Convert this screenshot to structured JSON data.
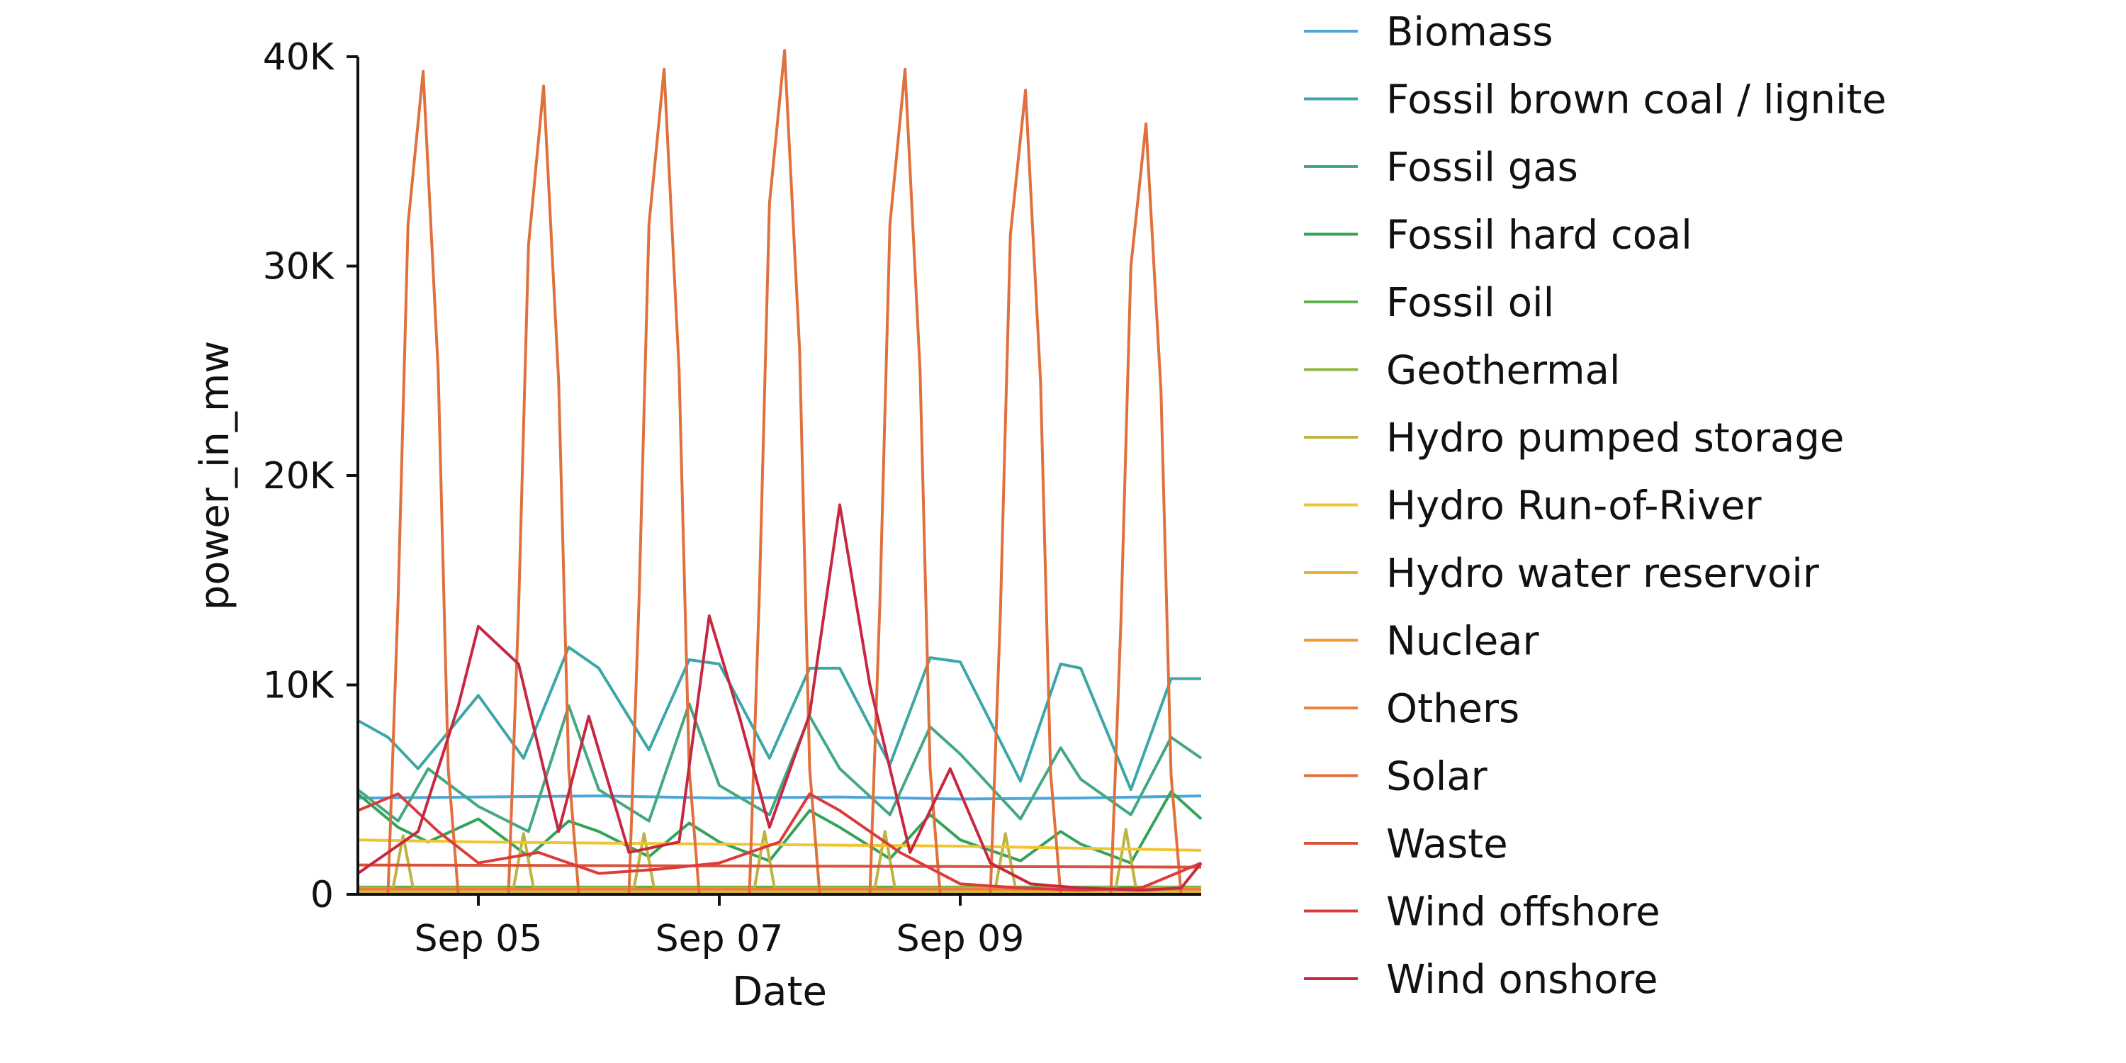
{
  "chart_data": {
    "type": "line",
    "xlabel": "Date",
    "ylabel": "power_in_mw",
    "x_start": "2023-09-04T00:00",
    "x_end": "2023-09-11T00:00",
    "xticks": [
      {
        "value": "2023-09-05",
        "label": "Sep 05"
      },
      {
        "value": "2023-09-07",
        "label": "Sep 07"
      },
      {
        "value": "2023-09-09",
        "label": "Sep 09"
      }
    ],
    "ylim": [
      0,
      40000
    ],
    "yticks": [
      {
        "value": 0,
        "label": "0"
      },
      {
        "value": 10000,
        "label": "10K"
      },
      {
        "value": 20000,
        "label": "20K"
      },
      {
        "value": 30000,
        "label": "30K"
      },
      {
        "value": 40000,
        "label": "40K"
      }
    ],
    "grid": false,
    "legend_position": "right",
    "series": [
      {
        "name": "Biomass",
        "color": "#4ea6d8",
        "x": [
          "2023-09-04T00:00",
          "2023-09-05T00:00",
          "2023-09-06T00:00",
          "2023-09-07T00:00",
          "2023-09-08T00:00",
          "2023-09-09T00:00",
          "2023-09-10T00:00",
          "2023-09-11T00:00"
        ],
        "values": [
          4600,
          4650,
          4700,
          4600,
          4650,
          4550,
          4600,
          4700
        ]
      },
      {
        "name": "Fossil brown coal / lignite",
        "color": "#3da6a8",
        "x": [
          "2023-09-04T00:00",
          "2023-09-04T06:00",
          "2023-09-04T12:00",
          "2023-09-05T00:00",
          "2023-09-05T09:00",
          "2023-09-05T18:00",
          "2023-09-06T00:00",
          "2023-09-06T10:00",
          "2023-09-06T18:00",
          "2023-09-07T00:00",
          "2023-09-07T10:00",
          "2023-09-07T18:00",
          "2023-09-08T00:00",
          "2023-09-08T10:00",
          "2023-09-08T18:00",
          "2023-09-09T00:00",
          "2023-09-09T12:00",
          "2023-09-09T20:00",
          "2023-09-10T00:00",
          "2023-09-10T10:00",
          "2023-09-10T18:00",
          "2023-09-11T00:00"
        ],
        "values": [
          8300,
          7500,
          6000,
          9500,
          6500,
          11800,
          10800,
          6900,
          11200,
          11000,
          6500,
          10800,
          10800,
          6200,
          11300,
          11100,
          5400,
          11000,
          10800,
          5000,
          10300,
          10300
        ]
      },
      {
        "name": "Fossil gas",
        "color": "#43a882",
        "x": [
          "2023-09-04T00:00",
          "2023-09-04T08:00",
          "2023-09-04T14:00",
          "2023-09-05T00:00",
          "2023-09-05T10:00",
          "2023-09-05T18:00",
          "2023-09-06T00:00",
          "2023-09-06T10:00",
          "2023-09-06T18:00",
          "2023-09-07T00:00",
          "2023-09-07T10:00",
          "2023-09-07T18:00",
          "2023-09-08T00:00",
          "2023-09-08T10:00",
          "2023-09-08T18:00",
          "2023-09-09T00:00",
          "2023-09-09T12:00",
          "2023-09-09T20:00",
          "2023-09-10T00:00",
          "2023-09-10T10:00",
          "2023-09-10T18:00",
          "2023-09-11T00:00"
        ],
        "values": [
          5000,
          3500,
          6000,
          4200,
          3000,
          9000,
          5000,
          3500,
          9100,
          5200,
          3800,
          8500,
          6000,
          3800,
          8000,
          6700,
          3600,
          7000,
          5500,
          3800,
          7500,
          6500
        ]
      },
      {
        "name": "Fossil hard coal",
        "color": "#34a257",
        "x": [
          "2023-09-04T00:00",
          "2023-09-04T08:00",
          "2023-09-04T14:00",
          "2023-09-05T00:00",
          "2023-09-05T10:00",
          "2023-09-05T18:00",
          "2023-09-06T00:00",
          "2023-09-06T10:00",
          "2023-09-06T18:00",
          "2023-09-07T00:00",
          "2023-09-07T10:00",
          "2023-09-07T18:00",
          "2023-09-08T00:00",
          "2023-09-08T10:00",
          "2023-09-08T18:00",
          "2023-09-09T00:00",
          "2023-09-09T12:00",
          "2023-09-09T20:00",
          "2023-09-10T00:00",
          "2023-09-10T10:00",
          "2023-09-10T18:00",
          "2023-09-11T00:00"
        ],
        "values": [
          4800,
          3200,
          2500,
          3600,
          1800,
          3500,
          3000,
          1800,
          3400,
          2500,
          1600,
          4000,
          3200,
          1700,
          3800,
          2600,
          1600,
          3000,
          2400,
          1500,
          4900,
          3600
        ]
      },
      {
        "name": "Fossil oil",
        "color": "#5faf4f",
        "x": [
          "2023-09-04T00:00",
          "2023-09-11T00:00"
        ],
        "values": [
          350,
          350
        ]
      },
      {
        "name": "Geothermal",
        "color": "#8fb545",
        "x": [
          "2023-09-04T00:00",
          "2023-09-11T00:00"
        ],
        "values": [
          20,
          20
        ]
      },
      {
        "name": "Hydro pumped storage",
        "color": "#bdb33f",
        "x": [
          "2023-09-04T00:00",
          "2023-09-04T07:00",
          "2023-09-04T09:00",
          "2023-09-04T11:00",
          "2023-09-05T07:00",
          "2023-09-05T09:00",
          "2023-09-05T11:00",
          "2023-09-06T07:00",
          "2023-09-06T09:00",
          "2023-09-06T11:00",
          "2023-09-07T07:00",
          "2023-09-07T09:00",
          "2023-09-07T11:00",
          "2023-09-08T07:00",
          "2023-09-08T09:00",
          "2023-09-08T11:00",
          "2023-09-09T07:00",
          "2023-09-09T09:00",
          "2023-09-09T11:00",
          "2023-09-10T07:00",
          "2023-09-10T09:00",
          "2023-09-10T11:00",
          "2023-09-11T00:00"
        ],
        "values": [
          300,
          300,
          2800,
          300,
          300,
          2900,
          300,
          300,
          2900,
          300,
          300,
          3000,
          300,
          300,
          3000,
          300,
          300,
          2900,
          300,
          300,
          3100,
          300,
          300
        ]
      },
      {
        "name": "Hydro Run-of-River",
        "color": "#f0c432",
        "x": [
          "2023-09-04T00:00",
          "2023-09-05T00:00",
          "2023-09-06T00:00",
          "2023-09-07T00:00",
          "2023-09-08T00:00",
          "2023-09-09T00:00",
          "2023-09-10T00:00",
          "2023-09-11T00:00"
        ],
        "values": [
          2600,
          2500,
          2450,
          2400,
          2350,
          2300,
          2200,
          2100
        ]
      },
      {
        "name": "Hydro water reservoir",
        "color": "#ebb03a",
        "x": [
          "2023-09-04T00:00",
          "2023-09-11T00:00"
        ],
        "values": [
          150,
          150
        ]
      },
      {
        "name": "Nuclear",
        "color": "#ef9a36",
        "x": [
          "2023-09-04T00:00",
          "2023-09-11T00:00"
        ],
        "values": [
          0,
          0
        ]
      },
      {
        "name": "Others",
        "color": "#e87f3a",
        "x": [
          "2023-09-04T00:00",
          "2023-09-11T00:00"
        ],
        "values": [
          250,
          250
        ]
      },
      {
        "name": "Solar",
        "color": "#e0703c",
        "x": [
          "2023-09-04T00:00",
          "2023-09-04T06:00",
          "2023-09-04T08:00",
          "2023-09-04T10:00",
          "2023-09-04T13:00",
          "2023-09-04T16:00",
          "2023-09-04T18:00",
          "2023-09-04T20:00",
          "2023-09-05T06:00",
          "2023-09-05T08:00",
          "2023-09-05T10:00",
          "2023-09-05T13:00",
          "2023-09-05T16:00",
          "2023-09-05T18:00",
          "2023-09-05T20:00",
          "2023-09-06T06:00",
          "2023-09-06T08:00",
          "2023-09-06T10:00",
          "2023-09-06T13:00",
          "2023-09-06T16:00",
          "2023-09-06T18:00",
          "2023-09-06T20:00",
          "2023-09-07T06:00",
          "2023-09-07T08:00",
          "2023-09-07T10:00",
          "2023-09-07T13:00",
          "2023-09-07T16:00",
          "2023-09-07T18:00",
          "2023-09-07T20:00",
          "2023-09-08T06:00",
          "2023-09-08T08:00",
          "2023-09-08T10:00",
          "2023-09-08T13:00",
          "2023-09-08T16:00",
          "2023-09-08T18:00",
          "2023-09-08T20:00",
          "2023-09-09T06:00",
          "2023-09-09T08:00",
          "2023-09-09T10:00",
          "2023-09-09T13:00",
          "2023-09-09T16:00",
          "2023-09-09T18:00",
          "2023-09-09T20:00",
          "2023-09-10T06:00",
          "2023-09-10T08:00",
          "2023-09-10T10:00",
          "2023-09-10T13:00",
          "2023-09-10T16:00",
          "2023-09-10T18:00",
          "2023-09-10T20:00",
          "2023-09-11T00:00"
        ],
        "values": [
          0,
          0,
          14000,
          32000,
          39300,
          25000,
          6000,
          0,
          0,
          13500,
          31000,
          38600,
          24500,
          6000,
          0,
          0,
          14000,
          32000,
          39400,
          25000,
          6000,
          0,
          0,
          14500,
          33000,
          40300,
          26000,
          6000,
          0,
          0,
          14000,
          32000,
          39400,
          25000,
          6000,
          0,
          0,
          13500,
          31500,
          38400,
          24500,
          5800,
          0,
          0,
          13000,
          30000,
          36800,
          24000,
          5700,
          0,
          0
        ]
      },
      {
        "name": "Waste",
        "color": "#d8533a",
        "x": [
          "2023-09-04T00:00",
          "2023-09-11T00:00"
        ],
        "values": [
          1400,
          1300
        ]
      },
      {
        "name": "Wind offshore",
        "color": "#dd3b3b",
        "x": [
          "2023-09-04T00:00",
          "2023-09-04T08:00",
          "2023-09-04T16:00",
          "2023-09-05T00:00",
          "2023-09-05T12:00",
          "2023-09-06T00:00",
          "2023-09-06T12:00",
          "2023-09-07T00:00",
          "2023-09-07T12:00",
          "2023-09-07T18:00",
          "2023-09-08T00:00",
          "2023-09-08T12:00",
          "2023-09-09T00:00",
          "2023-09-09T12:00",
          "2023-09-10T00:00",
          "2023-09-10T12:00",
          "2023-09-11T00:00"
        ],
        "values": [
          4000,
          4800,
          3000,
          1500,
          2000,
          1000,
          1200,
          1500,
          2500,
          4800,
          4000,
          2000,
          500,
          300,
          200,
          300,
          1500
        ]
      },
      {
        "name": "Wind onshore",
        "color": "#c72841",
        "x": [
          "2023-09-04T00:00",
          "2023-09-04T12:00",
          "2023-09-04T20:00",
          "2023-09-05T00:00",
          "2023-09-05T08:00",
          "2023-09-05T16:00",
          "2023-09-05T22:00",
          "2023-09-06T06:00",
          "2023-09-06T16:00",
          "2023-09-06T22:00",
          "2023-09-07T04:00",
          "2023-09-07T10:00",
          "2023-09-07T18:00",
          "2023-09-08T00:00",
          "2023-09-08T06:00",
          "2023-09-08T14:00",
          "2023-09-08T22:00",
          "2023-09-09T06:00",
          "2023-09-09T14:00",
          "2023-09-10T00:00",
          "2023-09-10T12:00",
          "2023-09-10T20:00",
          "2023-09-11T00:00"
        ],
        "values": [
          1000,
          3000,
          9000,
          12800,
          11000,
          3000,
          8500,
          2000,
          2500,
          13300,
          8500,
          3200,
          8600,
          18600,
          10000,
          2000,
          6000,
          1500,
          500,
          300,
          200,
          300,
          1500
        ]
      }
    ]
  }
}
